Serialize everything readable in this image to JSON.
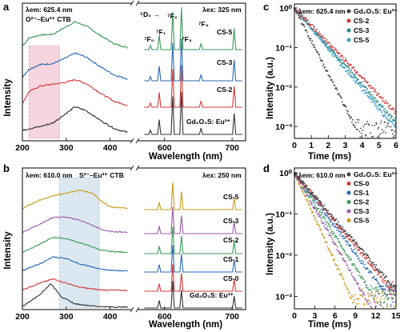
{
  "chart_data": [
    {
      "panel": "a",
      "type": "line",
      "title": "",
      "xlabel": "Wavelength (nm)",
      "ylabel": "Intensity",
      "xlim": [
        200,
        720
      ],
      "x_ticks": [
        "200",
        "300",
        "400",
        "600",
        "700"
      ],
      "axis_break": [
        450,
        560
      ],
      "excitation_label": "λem: 625.4 nm",
      "excitation_sublabel": "O²⁻–Eu³⁺ CTB",
      "emission_label": "λex: 325 nm",
      "transition_labels": [
        "⁵D₀ →",
        "⁷F₀",
        "⁷F₁",
        "⁷F₂",
        "⁷F₃",
        "⁷F₄"
      ],
      "highlight_band": [
        215,
        285
      ],
      "highlight_color": "#f6d5df",
      "series": [
        {
          "name": "CS-5",
          "color": "#3a9a5a",
          "excitation": [
            [
              200,
              0.1
            ],
            [
              215,
              0.3
            ],
            [
              240,
              0.38
            ],
            [
              270,
              0.4
            ],
            [
              300,
              0.6
            ],
            [
              320,
              0.72
            ],
            [
              345,
              0.62
            ],
            [
              380,
              0.35
            ],
            [
              410,
              0.15
            ],
            [
              440,
              0.05
            ]
          ],
          "emission_peaks": [
            [
              579,
              0.1
            ],
            [
              592,
              0.35
            ],
            [
              612,
              0.9
            ],
            [
              625,
              1.0
            ],
            [
              654,
              0.15
            ],
            [
              703,
              0.5
            ]
          ]
        },
        {
          "name": "CS-3",
          "color": "#2a6ab4",
          "excitation": [
            [
              200,
              0.1
            ],
            [
              215,
              0.3
            ],
            [
              240,
              0.42
            ],
            [
              270,
              0.45
            ],
            [
              300,
              0.6
            ],
            [
              320,
              0.72
            ],
            [
              345,
              0.62
            ],
            [
              380,
              0.35
            ],
            [
              410,
              0.15
            ],
            [
              440,
              0.05
            ]
          ],
          "emission_peaks": [
            [
              579,
              0.1
            ],
            [
              592,
              0.35
            ],
            [
              612,
              0.9
            ],
            [
              625,
              1.0
            ],
            [
              654,
              0.15
            ],
            [
              703,
              0.5
            ]
          ]
        },
        {
          "name": "CS-2",
          "color": "#d23a3a",
          "excitation": [
            [
              200,
              0.1
            ],
            [
              215,
              0.4
            ],
            [
              240,
              0.55
            ],
            [
              270,
              0.6
            ],
            [
              300,
              0.65
            ],
            [
              320,
              0.72
            ],
            [
              345,
              0.62
            ],
            [
              380,
              0.35
            ],
            [
              410,
              0.15
            ],
            [
              440,
              0.05
            ]
          ],
          "emission_peaks": [
            [
              579,
              0.1
            ],
            [
              592,
              0.35
            ],
            [
              612,
              0.9
            ],
            [
              625,
              1.0
            ],
            [
              654,
              0.15
            ],
            [
              703,
              0.5
            ]
          ]
        },
        {
          "name": "Gd₂O₂S: Eu³⁺",
          "color": "#333333",
          "excitation": [
            [
              200,
              0.1
            ],
            [
              215,
              0.15
            ],
            [
              240,
              0.2
            ],
            [
              270,
              0.3
            ],
            [
              300,
              0.55
            ],
            [
              320,
              0.72
            ],
            [
              345,
              0.62
            ],
            [
              380,
              0.35
            ],
            [
              410,
              0.15
            ],
            [
              440,
              0.05
            ]
          ],
          "emission_peaks": [
            [
              579,
              0.1
            ],
            [
              592,
              0.35
            ],
            [
              612,
              0.9
            ],
            [
              625,
              1.0
            ],
            [
              654,
              0.15
            ],
            [
              703,
              0.5
            ]
          ]
        }
      ]
    },
    {
      "panel": "b",
      "type": "line",
      "title": "",
      "xlabel": "Wavelength (nm)",
      "ylabel": "Intensity",
      "xlim": [
        200,
        720
      ],
      "x_ticks": [
        "200",
        "300",
        "400",
        "600",
        "700"
      ],
      "axis_break": [
        450,
        560
      ],
      "excitation_label": "λem: 610.0 nm",
      "excitation_sublabel": "S²⁻–Eu³⁺ CTB",
      "emission_label": "λex: 250 nm",
      "highlight_band": [
        285,
        375
      ],
      "highlight_color": "#dce8f1",
      "series": [
        {
          "name": "CS-5",
          "color": "#c99a1a",
          "excitation": [
            [
              200,
              0.05
            ],
            [
              240,
              0.35
            ],
            [
              270,
              0.5
            ],
            [
              300,
              0.62
            ],
            [
              330,
              0.72
            ],
            [
              360,
              0.6
            ],
            [
              380,
              0.3
            ],
            [
              400,
              0.1
            ],
            [
              440,
              0.05
            ]
          ],
          "emission_peaks": [
            [
              592,
              0.25
            ],
            [
              612,
              0.9
            ],
            [
              625,
              0.6
            ],
            [
              703,
              0.4
            ]
          ]
        },
        {
          "name": "CS-3",
          "color": "#9a5aaa",
          "excitation": [
            [
              200,
              0.05
            ],
            [
              240,
              0.35
            ],
            [
              270,
              0.6
            ],
            [
              300,
              0.6
            ],
            [
              330,
              0.5
            ],
            [
              360,
              0.3
            ],
            [
              380,
              0.15
            ],
            [
              400,
              0.08
            ],
            [
              440,
              0.05
            ]
          ],
          "emission_peaks": [
            [
              592,
              0.25
            ],
            [
              612,
              0.9
            ],
            [
              625,
              0.6
            ],
            [
              703,
              0.4
            ]
          ]
        },
        {
          "name": "CS-2",
          "color": "#3a9a5a",
          "excitation": [
            [
              200,
              0.05
            ],
            [
              240,
              0.35
            ],
            [
              270,
              0.6
            ],
            [
              300,
              0.55
            ],
            [
              330,
              0.4
            ],
            [
              360,
              0.25
            ],
            [
              380,
              0.12
            ],
            [
              400,
              0.08
            ],
            [
              440,
              0.05
            ]
          ],
          "emission_peaks": [
            [
              592,
              0.25
            ],
            [
              612,
              0.9
            ],
            [
              625,
              0.6
            ],
            [
              703,
              0.4
            ]
          ]
        },
        {
          "name": "CS-1",
          "color": "#2a6ab4",
          "excitation": [
            [
              200,
              0.05
            ],
            [
              240,
              0.3
            ],
            [
              270,
              0.55
            ],
            [
              300,
              0.5
            ],
            [
              330,
              0.3
            ],
            [
              360,
              0.18
            ],
            [
              380,
              0.1
            ],
            [
              400,
              0.06
            ],
            [
              440,
              0.04
            ]
          ],
          "emission_peaks": [
            [
              592,
              0.25
            ],
            [
              612,
              0.9
            ],
            [
              625,
              0.6
            ],
            [
              703,
              0.4
            ]
          ]
        },
        {
          "name": "CS-0",
          "color": "#d23a3a",
          "excitation": [
            [
              200,
              0.05
            ],
            [
              240,
              0.3
            ],
            [
              270,
              0.45
            ],
            [
              300,
              0.3
            ],
            [
              330,
              0.15
            ],
            [
              360,
              0.08
            ],
            [
              380,
              0.05
            ],
            [
              400,
              0.04
            ],
            [
              440,
              0.03
            ]
          ],
          "emission_peaks": [
            [
              592,
              0.25
            ],
            [
              612,
              0.9
            ],
            [
              625,
              0.6
            ],
            [
              703,
              0.4
            ]
          ]
        },
        {
          "name": "Gd₂O₂S: Eu³⁺",
          "color": "#333333",
          "excitation": [
            [
              200,
              0.05
            ],
            [
              240,
              0.5
            ],
            [
              265,
              0.9
            ],
            [
              290,
              0.4
            ],
            [
              320,
              0.15
            ],
            [
              360,
              0.08
            ],
            [
              380,
              0.05
            ],
            [
              400,
              0.04
            ],
            [
              440,
              0.03
            ]
          ],
          "emission_peaks": [
            [
              592,
              0.25
            ],
            [
              612,
              0.9
            ],
            [
              625,
              0.6
            ],
            [
              703,
              0.4
            ]
          ]
        }
      ]
    },
    {
      "panel": "c",
      "type": "scatter",
      "title": "",
      "xlabel": "Time (ms)",
      "ylabel": "Intensity (a.u.)",
      "xlim": [
        0,
        6
      ],
      "ylim": [
        0.0005,
        1
      ],
      "yscale": "log",
      "x_ticks": [
        "0",
        "1",
        "2",
        "3",
        "4",
        "5",
        "6"
      ],
      "y_ticks": [
        "10⁰",
        "10⁻¹",
        "10⁻²",
        "10⁻³"
      ],
      "annotation": "λem: 625.4 nm",
      "legend_location": "top-right",
      "series": [
        {
          "name": "Gd₂O₂S: Eu³⁺",
          "color": "#444444",
          "decay_ms": 0.52,
          "noise_floor": 0.0008
        },
        {
          "name": "CS-2",
          "color": "#d23a3a",
          "decay_ms": 0.98,
          "noise_floor": 0.0012
        },
        {
          "name": "CS-3",
          "color": "#2a8a8a",
          "decay_ms": 0.9,
          "noise_floor": 0.001
        },
        {
          "name": "CS-5",
          "color": "#3aa0d0",
          "decay_ms": 0.85,
          "noise_floor": 0.001
        }
      ]
    },
    {
      "panel": "d",
      "type": "scatter",
      "title": "",
      "xlabel": "Time (ms)",
      "ylabel": "Intensity (a.u.)",
      "xlim": [
        0,
        15
      ],
      "ylim": [
        0.0005,
        1
      ],
      "yscale": "log",
      "x_ticks": [
        "0",
        "3",
        "6",
        "9",
        "12",
        "15"
      ],
      "y_ticks": [
        "10⁰",
        "10⁻¹",
        "10⁻²",
        "10⁻³"
      ],
      "annotation": "λem: 610.0 nm",
      "legend_location": "top-right",
      "series": [
        {
          "name": "Gd₂O₂S: Eu³⁺",
          "color": "#444444",
          "decay_ms": 2.3,
          "noise_floor": 0.001
        },
        {
          "name": "CS-0",
          "color": "#d23a3a",
          "decay_ms": 2.2,
          "noise_floor": 0.0012
        },
        {
          "name": "CS-1",
          "color": "#2a6ab4",
          "decay_ms": 2.0,
          "noise_floor": 0.0011
        },
        {
          "name": "CS-2",
          "color": "#3a9a5a",
          "decay_ms": 1.7,
          "noise_floor": 0.001
        },
        {
          "name": "CS-3",
          "color": "#9a5aaa",
          "decay_ms": 1.5,
          "noise_floor": 0.0009
        },
        {
          "name": "CS-5",
          "color": "#c99a1a",
          "decay_ms": 1.2,
          "noise_floor": 0.0008
        }
      ]
    }
  ]
}
